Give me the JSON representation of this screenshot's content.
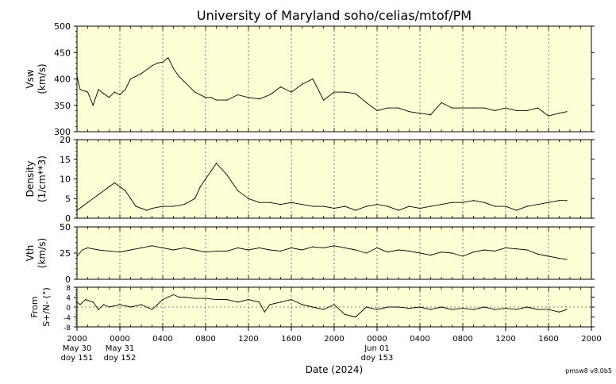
{
  "title": "University of Maryland  soho/celias/mtof/PM",
  "xlabel": "Date (2024)",
  "footer": "pmsw8 v8.0b5",
  "x_ticks": [
    "2000",
    "0000",
    "0400",
    "0800",
    "1200",
    "1600",
    "2000",
    "0000",
    "0400",
    "0800",
    "1200",
    "1600",
    "2000"
  ],
  "day_labels": [
    {
      "tick": 0,
      "lines": [
        "May 30",
        "doy 151"
      ]
    },
    {
      "tick": 1,
      "lines": [
        "May 31",
        "doy 152"
      ]
    },
    {
      "tick": 7,
      "lines": [
        "Jun 01",
        "doy 153"
      ]
    }
  ],
  "colors": {
    "plot_bg": "#ffffd6",
    "line": "#000000",
    "grid": "#555555"
  },
  "chart_data": [
    {
      "type": "line",
      "ylabel_lines": [
        "Vsw",
        "(km/s)"
      ],
      "ylim": [
        300,
        500
      ],
      "yticks": [
        300,
        350,
        400,
        450,
        500
      ],
      "x_hours": [
        0,
        0.3,
        1,
        1.5,
        2,
        2.5,
        3,
        3.5,
        4,
        4.5,
        5,
        5.5,
        6,
        7,
        7.5,
        8,
        8.5,
        9,
        9.5,
        10,
        11,
        12,
        12.5,
        13,
        14,
        15,
        16,
        17,
        18,
        19,
        20,
        21,
        22,
        23,
        24,
        25,
        26,
        27,
        28,
        29,
        30,
        31,
        32,
        33,
        34,
        35,
        36,
        37,
        38,
        39,
        40,
        41,
        42,
        43,
        44,
        45,
        45.7
      ],
      "values": [
        405,
        380,
        375,
        350,
        380,
        372,
        365,
        375,
        370,
        380,
        400,
        405,
        410,
        425,
        430,
        432,
        440,
        420,
        405,
        395,
        375,
        365,
        365,
        360,
        360,
        370,
        365,
        362,
        370,
        385,
        375,
        390,
        400,
        360,
        375,
        375,
        372,
        355,
        340,
        345,
        345,
        338,
        335,
        332,
        355,
        345,
        345,
        345,
        345,
        340,
        345,
        340,
        340,
        345,
        330,
        335,
        338
      ]
    },
    {
      "type": "line",
      "ylabel_lines": [
        "Density",
        "(1/cm**3)"
      ],
      "ylim": [
        0,
        20
      ],
      "yticks": [
        0,
        5,
        10,
        15,
        20
      ],
      "x_hours": [
        0,
        0.5,
        1,
        2,
        3,
        3.5,
        4,
        4.5,
        5,
        5.5,
        6,
        6.5,
        7,
        8,
        9,
        10,
        11,
        11.5,
        12,
        12.5,
        13,
        14,
        15,
        16,
        17,
        18,
        19,
        20,
        21,
        22,
        23,
        24,
        25,
        26,
        27,
        28,
        29,
        30,
        31,
        32,
        33,
        34,
        35,
        36,
        37,
        38,
        39,
        40,
        41,
        42,
        43,
        44,
        45,
        45.7
      ],
      "values": [
        2,
        3,
        4,
        6,
        8,
        9,
        8,
        7,
        5,
        3,
        2.5,
        2,
        2.5,
        3,
        3,
        3.5,
        5,
        8,
        10,
        12,
        14,
        11,
        7,
        5,
        4,
        4,
        3.5,
        4,
        3.5,
        3,
        3,
        2.5,
        3,
        2,
        3,
        3.5,
        3,
        2,
        3,
        2.5,
        3,
        3.5,
        4,
        4,
        4.5,
        4,
        3,
        3,
        2,
        3,
        3.5,
        4,
        4.5,
        4.5
      ]
    },
    {
      "type": "line",
      "ylabel_lines": [
        "Vth",
        "(km/s)"
      ],
      "ylim": [
        0,
        50
      ],
      "yticks": [
        0,
        25,
        50
      ],
      "x_hours": [
        0,
        0.5,
        1,
        2,
        3,
        4,
        5,
        6,
        7,
        8,
        9,
        10,
        11,
        12,
        13,
        14,
        15,
        16,
        17,
        18,
        19,
        20,
        21,
        22,
        23,
        24,
        25,
        26,
        27,
        28,
        29,
        30,
        31,
        32,
        33,
        34,
        35,
        36,
        37,
        38,
        39,
        40,
        41,
        42,
        43,
        44,
        45,
        45.7
      ],
      "values": [
        22,
        28,
        30,
        28,
        27,
        26,
        28,
        30,
        32,
        30,
        28,
        30,
        28,
        26,
        27,
        27,
        30,
        28,
        30,
        28,
        27,
        30,
        28,
        31,
        30,
        32,
        30,
        28,
        25,
        30,
        26,
        28,
        27,
        25,
        23,
        26,
        25,
        22,
        26,
        28,
        27,
        30,
        29,
        28,
        24,
        22,
        20,
        19
      ]
    },
    {
      "type": "line",
      "ylabel_lines": [
        "From",
        "S+/N- (°)"
      ],
      "ylim": [
        -8,
        8
      ],
      "yticks": [
        -8,
        -4,
        0,
        4,
        8
      ],
      "zero_line": true,
      "x_hours": [
        0,
        0.3,
        0.8,
        1.5,
        2,
        2.5,
        3,
        4,
        5,
        6,
        7,
        7.5,
        8,
        8.5,
        9,
        9.5,
        10,
        11,
        12,
        13,
        14,
        15,
        16,
        17,
        17.5,
        18,
        19,
        20,
        21,
        22,
        23,
        24,
        25,
        26,
        27,
        28,
        29,
        30,
        31,
        32,
        33,
        34,
        35,
        36,
        37,
        38,
        39,
        40,
        41,
        42,
        43,
        44,
        45,
        45.7
      ],
      "values": [
        2,
        1,
        3,
        2,
        -1,
        1,
        0,
        1,
        0,
        1,
        -1,
        1,
        3,
        4,
        5,
        4,
        4,
        3.5,
        3.5,
        3,
        3,
        2,
        3,
        2,
        -2,
        1,
        2,
        3,
        1,
        0,
        -1,
        1,
        -3,
        -4,
        0,
        -1,
        0,
        0,
        -0.5,
        0,
        -1,
        0,
        -1,
        -0.5,
        -1,
        0,
        -1,
        -0.5,
        -1,
        0,
        -1,
        -1,
        -2,
        -1
      ]
    }
  ]
}
